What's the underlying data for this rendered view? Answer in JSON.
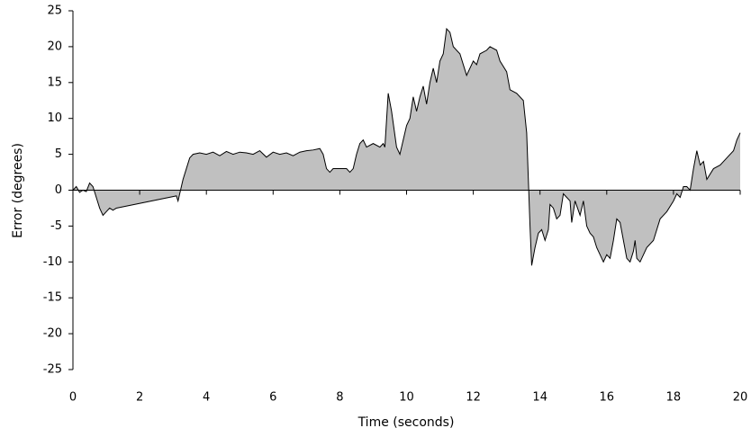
{
  "chart_data": {
    "type": "area",
    "x_label": "Time (seconds)",
    "y_label": "Error (degrees)",
    "x": [
      0,
      0.1,
      0.2,
      0.3,
      0.4,
      0.5,
      0.6,
      0.7,
      0.8,
      0.9,
      1.0,
      1.1,
      1.2,
      1.3,
      3.1,
      3.15,
      3.2,
      3.3,
      3.4,
      3.5,
      3.6,
      3.8,
      4.0,
      4.2,
      4.4,
      4.6,
      4.8,
      5.0,
      5.2,
      5.4,
      5.6,
      5.8,
      6.0,
      6.2,
      6.4,
      6.6,
      6.8,
      7.0,
      7.2,
      7.4,
      7.5,
      7.6,
      7.7,
      7.8,
      8.0,
      8.2,
      8.3,
      8.4,
      8.5,
      8.6,
      8.7,
      8.8,
      9.0,
      9.2,
      9.3,
      9.35,
      9.45,
      9.55,
      9.7,
      9.8,
      9.9,
      10.0,
      10.1,
      10.2,
      10.3,
      10.4,
      10.5,
      10.6,
      10.7,
      10.8,
      10.9,
      11.0,
      11.1,
      11.2,
      11.3,
      11.4,
      11.6,
      11.7,
      11.8,
      11.9,
      12.0,
      12.1,
      12.2,
      12.4,
      12.5,
      12.7,
      12.8,
      13.0,
      13.1,
      13.3,
      13.5,
      13.6,
      13.7,
      13.75,
      13.85,
      13.95,
      14.05,
      14.15,
      14.25,
      14.3,
      14.4,
      14.5,
      14.6,
      14.7,
      14.8,
      14.9,
      14.95,
      15.0,
      15.05,
      15.2,
      15.3,
      15.4,
      15.5,
      15.6,
      15.7,
      15.8,
      15.9,
      16.0,
      16.1,
      16.2,
      16.3,
      16.4,
      16.5,
      16.6,
      16.7,
      16.8,
      16.85,
      16.9,
      17.0,
      17.2,
      17.4,
      17.6,
      17.8,
      18.0,
      18.1,
      18.2,
      18.3,
      18.4,
      18.5,
      18.6,
      18.7,
      18.8,
      18.9,
      19.0,
      19.2,
      19.4,
      19.6,
      19.8,
      19.9,
      20.0
    ],
    "values": [
      0,
      0.5,
      -0.3,
      0,
      -0.2,
      1,
      0.5,
      -1,
      -2.5,
      -3.5,
      -3,
      -2.5,
      -2.8,
      -2.5,
      -0.8,
      -1.5,
      -0.5,
      1.5,
      3,
      4.5,
      5,
      5.2,
      5,
      5.3,
      4.8,
      5.4,
      5,
      5.3,
      5.2,
      5,
      5.5,
      4.6,
      5.3,
      5,
      5.2,
      4.8,
      5.3,
      5.5,
      5.6,
      5.8,
      5,
      3,
      2.5,
      3,
      3,
      3,
      2.5,
      3,
      5,
      6.5,
      7,
      6,
      6.5,
      6,
      6.5,
      6,
      13.5,
      11,
      6,
      5,
      7,
      9,
      10,
      13,
      11,
      13,
      14.5,
      12,
      15,
      17,
      15,
      18,
      19,
      22.5,
      22,
      20,
      19,
      17.5,
      16,
      17,
      18,
      17.5,
      19,
      19.5,
      20,
      19.5,
      18,
      16.5,
      14,
      13.5,
      12.5,
      8,
      -5,
      -10.5,
      -8,
      -6,
      -5.5,
      -7,
      -5.5,
      -2,
      -2.5,
      -4,
      -3.5,
      -0.5,
      -1,
      -1.5,
      -4.5,
      -3,
      -1.5,
      -3.5,
      -1.5,
      -5,
      -6,
      -6.5,
      -8,
      -9,
      -10,
      -9,
      -9.5,
      -7,
      -4,
      -4.5,
      -7,
      -9.5,
      -10,
      -8.5,
      -7,
      -9.5,
      -10,
      -8,
      -7,
      -4,
      -3,
      -1.5,
      -0.5,
      -1,
      0.5,
      0.5,
      0,
      3,
      5.5,
      3.5,
      4,
      1.5,
      3,
      3.5,
      4.5,
      5.5,
      7,
      8
    ],
    "color": "#c0c0c0",
    "xlim": [
      0,
      20
    ],
    "xticks": [
      0,
      2,
      4,
      6,
      8,
      10,
      12,
      14,
      16,
      18,
      20
    ],
    "ylim": [
      -25,
      25
    ],
    "yticks": [
      -25,
      -20,
      -15,
      -10,
      -5,
      0,
      5,
      10,
      15,
      20,
      25
    ]
  }
}
